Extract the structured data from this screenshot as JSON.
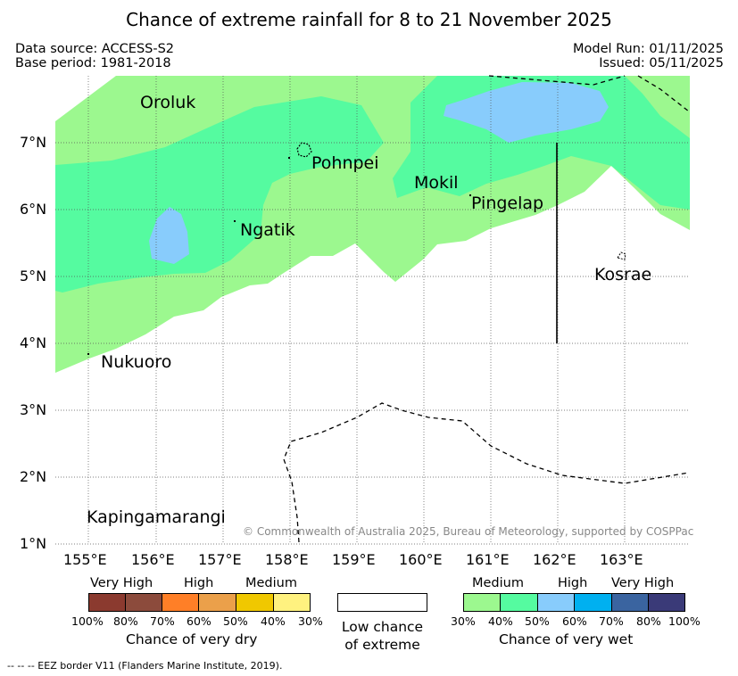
{
  "title": "Chance of extreme rainfall for 8 to 21 November 2025",
  "header": {
    "data_source": "Data source: ACCESS-S2",
    "base_period": "Base period: 1981-2018",
    "model_run": "Model Run: 01/11/2025",
    "issued": "Issued: 05/11/2025"
  },
  "map": {
    "lat_labels": [
      "7°N",
      "6°N",
      "5°N",
      "4°N",
      "3°N",
      "2°N",
      "1°N"
    ],
    "lon_labels": [
      "155°E",
      "156°E",
      "157°E",
      "158°E",
      "159°E",
      "160°E",
      "161°E",
      "162°E",
      "163°E"
    ],
    "places": {
      "oroluk": "Oroluk",
      "pohnpei": "Pohnpei",
      "mokil": "Mokil",
      "pingelap": "Pingelap",
      "ngatik": "Ngatik",
      "kosrae": "Kosrae",
      "nukuoro": "Nukuoro",
      "kapingamarangi": "Kapingamarangi"
    },
    "copyright": "© Commonwealth of Australia 2025, Bureau of Meteorology, supported by COSPPac"
  },
  "legend": {
    "dry": {
      "categories": [
        "Very High",
        "High",
        "Medium"
      ],
      "ticks": [
        "100%",
        "80%",
        "70%",
        "60%",
        "50%",
        "40%",
        "30%"
      ],
      "colors": [
        "#8b3a2f",
        "#8c4b3c",
        "#ff7f27",
        "#eba04a",
        "#f0c800",
        "#fff27f"
      ],
      "caption": "Chance of very dry"
    },
    "low": {
      "line1": "Low chance",
      "line2": "of extreme"
    },
    "wet": {
      "categories": [
        "Medium",
        "High",
        "Very High"
      ],
      "ticks": [
        "30%",
        "40%",
        "50%",
        "60%",
        "70%",
        "80%",
        "100%"
      ],
      "colors": [
        "#9cf88f",
        "#55fba0",
        "#88ccfc",
        "#00b0f0",
        "#3a64a0",
        "#3a3a78"
      ],
      "caption": "Chance of very wet"
    }
  },
  "footer": "-- -- -- EEZ border V11 (Flanders Marine Institute, 2019)."
}
